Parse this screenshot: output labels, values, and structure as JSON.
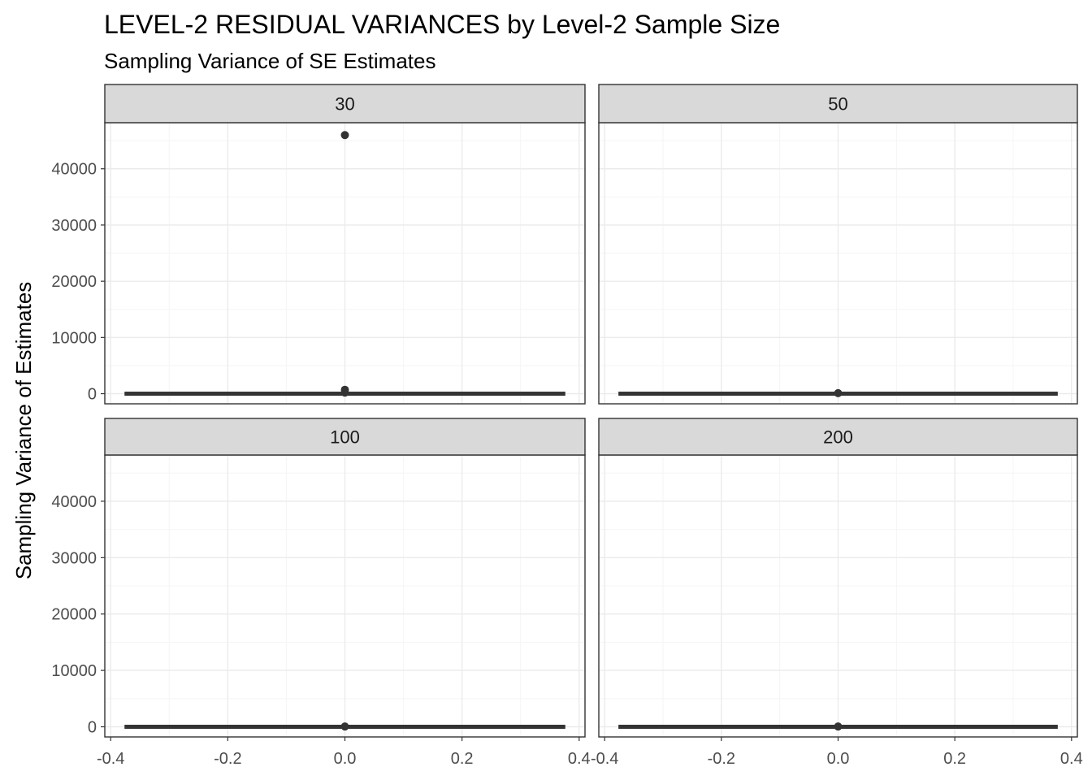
{
  "chart_data": {
    "type": "boxplot",
    "title": "LEVEL-2 RESIDUAL VARIANCES by Level-2 Sample Size",
    "subtitle": "Sampling Variance of SE Estimates",
    "ylabel": "Sampling Variance of Estimates",
    "xlabel": "",
    "facets": [
      "30",
      "50",
      "100",
      "200"
    ],
    "xlim": [
      -0.41,
      0.41
    ],
    "ylim": [
      -1800,
      48200
    ],
    "x_ticks": [
      -0.4,
      -0.2,
      0.0,
      0.2,
      0.4
    ],
    "x_tick_labels": [
      "-0.4",
      "-0.2",
      "0.0",
      "0.2",
      "0.4"
    ],
    "y_ticks": [
      0,
      10000,
      20000,
      30000,
      40000
    ],
    "y_tick_labels": [
      "0",
      "10000",
      "20000",
      "30000",
      "40000"
    ],
    "grid": true,
    "box_x_range": [
      -0.375,
      0.375
    ],
    "panels": [
      {
        "facet": "30",
        "box": {
          "lower": 0,
          "median": 0,
          "upper": 0
        },
        "points": [
          {
            "x": 0,
            "y": 46000
          },
          {
            "x": 0,
            "y": 700
          },
          {
            "x": 0,
            "y": 200
          }
        ]
      },
      {
        "facet": "50",
        "box": {
          "lower": 0,
          "median": 0,
          "upper": 0
        },
        "points": [
          {
            "x": 0,
            "y": 100
          }
        ]
      },
      {
        "facet": "100",
        "box": {
          "lower": 0,
          "median": 0,
          "upper": 0
        },
        "points": [
          {
            "x": 0,
            "y": 50
          }
        ]
      },
      {
        "facet": "200",
        "box": {
          "lower": 0,
          "median": 0,
          "upper": 0
        },
        "points": [
          {
            "x": 0,
            "y": 50
          }
        ]
      }
    ],
    "colors": {
      "strip_fill": "#d9d9d9",
      "panel_border": "#333333",
      "grid_major": "#ebebeb",
      "grid_minor": "#f5f5f5",
      "mark": "#333333",
      "tick_label": "#4d4d4d",
      "text": "#000000"
    }
  }
}
